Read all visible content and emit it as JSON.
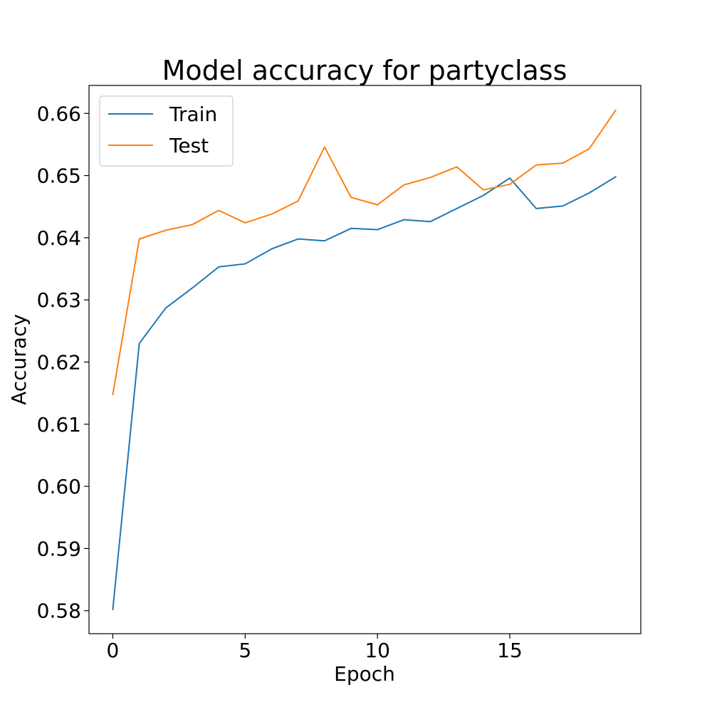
{
  "chart_data": {
    "type": "line",
    "title": "Model accuracy for partyclass",
    "xlabel": "Epoch",
    "ylabel": "Accuracy",
    "x": [
      0,
      1,
      2,
      3,
      4,
      5,
      6,
      7,
      8,
      9,
      10,
      11,
      12,
      13,
      14,
      15,
      16,
      17,
      18,
      19
    ],
    "xlim": [
      -0.9,
      19.95
    ],
    "ylim": [
      0.5763,
      0.6645
    ],
    "xticks": [
      0,
      5,
      10,
      15
    ],
    "xtick_labels": [
      "0",
      "5",
      "10",
      "15"
    ],
    "yticks": [
      0.58,
      0.59,
      0.6,
      0.61,
      0.62,
      0.63,
      0.64,
      0.65,
      0.66
    ],
    "ytick_labels": [
      "0.58",
      "0.59",
      "0.60",
      "0.61",
      "0.62",
      "0.63",
      "0.64",
      "0.65",
      "0.66"
    ],
    "grid": false,
    "legend_position": "upper-left",
    "series": [
      {
        "name": "Train",
        "color": "#1f77b4",
        "values": [
          0.5802,
          0.623,
          0.6287,
          0.6319,
          0.6353,
          0.6358,
          0.6382,
          0.6398,
          0.6395,
          0.6415,
          0.6413,
          0.6429,
          0.6426,
          0.6447,
          0.6468,
          0.6496,
          0.6447,
          0.6451,
          0.6472,
          0.6498
        ]
      },
      {
        "name": "Test",
        "color": "#ff7f0e",
        "values": [
          0.6148,
          0.6398,
          0.6412,
          0.6421,
          0.6444,
          0.6424,
          0.6438,
          0.6459,
          0.6546,
          0.6465,
          0.6453,
          0.6485,
          0.6497,
          0.6514,
          0.6477,
          0.6486,
          0.6517,
          0.652,
          0.6543,
          0.6605
        ]
      }
    ]
  }
}
